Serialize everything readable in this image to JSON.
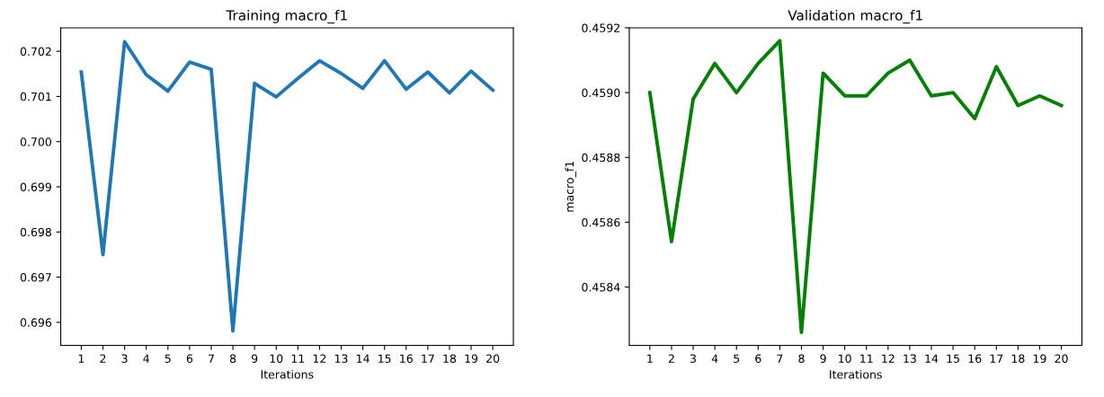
{
  "chart_data": [
    {
      "type": "line",
      "title": "Training macro_f1",
      "xlabel": "Iterations",
      "x": [
        1,
        2,
        3,
        4,
        5,
        6,
        7,
        8,
        9,
        10,
        11,
        12,
        13,
        14,
        15,
        16,
        17,
        18,
        19,
        20
      ],
      "xlim": [
        0.05,
        20.95
      ],
      "xticks": [
        1,
        2,
        3,
        4,
        5,
        6,
        7,
        8,
        9,
        10,
        11,
        12,
        13,
        14,
        15,
        16,
        17,
        18,
        19,
        20
      ],
      "ylim": [
        0.69549,
        0.70252
      ],
      "yticks": [
        {
          "value": 0.696,
          "label": "0.696"
        },
        {
          "value": 0.697,
          "label": "0.697"
        },
        {
          "value": 0.698,
          "label": "0.698"
        },
        {
          "value": 0.699,
          "label": "0.699"
        },
        {
          "value": 0.7,
          "label": "0.700"
        },
        {
          "value": 0.701,
          "label": "0.701"
        },
        {
          "value": 0.702,
          "label": "0.702"
        }
      ],
      "grid": false,
      "marker": "none",
      "line_style": "solid",
      "series": [
        {
          "color": "#1f77b4",
          "values": [
            0.70154,
            0.6975,
            0.70221,
            0.70148,
            0.70112,
            0.70176,
            0.7016,
            0.69581,
            0.70129,
            0.70099,
            0.7014,
            0.70179,
            0.70151,
            0.70118,
            0.70179,
            0.70116,
            0.70154,
            0.70108,
            0.70156,
            0.70114
          ]
        }
      ]
    },
    {
      "type": "line",
      "title": "Validation macro_f1",
      "xlabel": "Iterations",
      "ylabel": "macro_f1",
      "x": [
        1,
        2,
        3,
        4,
        5,
        6,
        7,
        8,
        9,
        10,
        11,
        12,
        13,
        14,
        15,
        16,
        17,
        18,
        19,
        20
      ],
      "xlim": [
        0.05,
        20.95
      ],
      "xticks": [
        1,
        2,
        3,
        4,
        5,
        6,
        7,
        8,
        9,
        10,
        11,
        12,
        13,
        14,
        15,
        16,
        17,
        18,
        19,
        20
      ],
      "ylim": [
        0.45822,
        0.4592
      ],
      "yticks": [
        {
          "value": 0.4584,
          "label": "0.4584"
        },
        {
          "value": 0.4586,
          "label": "0.4586"
        },
        {
          "value": 0.4588,
          "label": "0.4588"
        },
        {
          "value": 0.459,
          "label": "0.4590"
        },
        {
          "value": 0.4592,
          "label": "0.4592"
        }
      ],
      "grid": false,
      "marker": "none",
      "line_style": "solid",
      "series": [
        {
          "color": "#008000",
          "values": [
            0.459,
            0.45854,
            0.45898,
            0.45909,
            0.459,
            0.45909,
            0.45916,
            0.45826,
            0.45906,
            0.45899,
            0.45899,
            0.45906,
            0.4591,
            0.45899,
            0.459,
            0.45892,
            0.45908,
            0.45896,
            0.45899,
            0.45896
          ]
        }
      ]
    }
  ]
}
